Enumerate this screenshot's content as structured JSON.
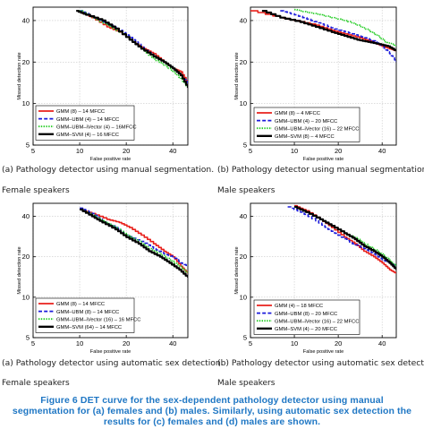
{
  "chart_data": [
    {
      "type": "line",
      "xlabel": "False positive rate",
      "ylabel": "Missed detection rate",
      "x_ticks": [
        "5",
        "10",
        "20",
        "40"
      ],
      "y_ticks": [
        "5",
        "10",
        "20",
        "40"
      ],
      "xlim": [
        5,
        50
      ],
      "ylim": [
        5,
        50
      ],
      "scale": "log",
      "grid": true,
      "legend_position": "bottom-left",
      "caption": "(a) Pathology detector using manual segmentation.",
      "group_label": "Female speakers",
      "series": [
        {
          "name": "GMM (8) – 14 MFCC",
          "color": "#e8201b",
          "style": "solid",
          "points": [
            [
              10,
              46
            ],
            [
              12,
              42
            ],
            [
              15,
              36
            ],
            [
              18,
              33
            ],
            [
              22,
              28
            ],
            [
              26,
              25
            ],
            [
              30,
              23
            ],
            [
              35,
              20
            ],
            [
              40,
              18
            ],
            [
              45,
              17
            ],
            [
              50,
              14
            ]
          ]
        },
        {
          "name": "GMM–UBM (4) – 14 MFCC",
          "color": "#1a1adb",
          "style": "dashed",
          "points": [
            [
              10,
              47
            ],
            [
              12,
              43
            ],
            [
              15,
              38
            ],
            [
              18,
              34
            ],
            [
              22,
              29
            ],
            [
              26,
              25
            ],
            [
              30,
              22
            ],
            [
              35,
              20
            ],
            [
              40,
              18
            ],
            [
              45,
              16
            ],
            [
              50,
              14
            ]
          ]
        },
        {
          "name": "GMM–UBM–iVector (4) – 16MFCC",
          "color": "#22cc22",
          "style": "dotted",
          "points": [
            [
              10,
              47
            ],
            [
              12,
              42
            ],
            [
              15,
              37
            ],
            [
              18,
              33
            ],
            [
              22,
              28
            ],
            [
              26,
              24
            ],
            [
              30,
              21
            ],
            [
              35,
              19
            ],
            [
              40,
              17
            ],
            [
              45,
              15
            ],
            [
              50,
              13
            ]
          ]
        },
        {
          "name": "GMM–SVM (4) – 16 MFCC",
          "color": "#000000",
          "style": "solid",
          "points": [
            [
              9.5,
              47
            ],
            [
              11,
              44
            ],
            [
              14,
              40
            ],
            [
              17,
              35
            ],
            [
              21,
              29
            ],
            [
              25,
              25
            ],
            [
              30,
              22
            ],
            [
              35,
              20
            ],
            [
              40,
              18
            ],
            [
              45,
              16
            ],
            [
              50,
              13
            ]
          ]
        }
      ]
    },
    {
      "type": "line",
      "xlabel": "False positive rate",
      "ylabel": "Missed detection rate",
      "x_ticks": [
        "5",
        "10",
        "20",
        "40"
      ],
      "y_ticks": [
        "5",
        "10",
        "20",
        "40"
      ],
      "xlim": [
        5,
        50
      ],
      "ylim": [
        5,
        50
      ],
      "scale": "log",
      "grid": true,
      "legend_position": "bottom-left",
      "caption": "(b) Pathology detector using manual segmentation.",
      "group_label": "Male speakers",
      "series": [
        {
          "name": "GMM (8) – 4 MFCC",
          "color": "#e8201b",
          "style": "solid",
          "points": [
            [
              5,
              47
            ],
            [
              8,
              42
            ],
            [
              10,
              40
            ],
            [
              14,
              37
            ],
            [
              18,
              34
            ],
            [
              22,
              32
            ],
            [
              28,
              30
            ],
            [
              34,
              28
            ],
            [
              40,
              26
            ],
            [
              45,
              25
            ],
            [
              50,
              24
            ]
          ]
        },
        {
          "name": "GMM–UBM (4) – 20 MFCC",
          "color": "#1a1adb",
          "style": "dashed",
          "points": [
            [
              8,
              47
            ],
            [
              10,
              44
            ],
            [
              13,
              40
            ],
            [
              16,
              37
            ],
            [
              20,
              34
            ],
            [
              25,
              32
            ],
            [
              30,
              30
            ],
            [
              36,
              28
            ],
            [
              40,
              26
            ],
            [
              45,
              23
            ],
            [
              50,
              20
            ]
          ]
        },
        {
          "name": "GMM–UBM–iVector (16) – 22 MFCC",
          "color": "#22cc22",
          "style": "dotted",
          "points": [
            [
              10,
              48
            ],
            [
              12,
              46
            ],
            [
              15,
              44
            ],
            [
              18,
              42
            ],
            [
              22,
              40
            ],
            [
              27,
              37
            ],
            [
              32,
              34
            ],
            [
              37,
              31
            ],
            [
              42,
              28
            ],
            [
              47,
              27
            ],
            [
              50,
              26
            ]
          ]
        },
        {
          "name": "GMM–SVM (8) – 4 MFCC",
          "color": "#000000",
          "style": "solid",
          "points": [
            [
              6,
              47
            ],
            [
              8,
              42
            ],
            [
              11,
              39
            ],
            [
              14,
              36
            ],
            [
              18,
              33
            ],
            [
              22,
              31
            ],
            [
              27,
              29
            ],
            [
              32,
              28
            ],
            [
              38,
              27
            ],
            [
              44,
              26
            ],
            [
              50,
              24
            ]
          ]
        }
      ]
    },
    {
      "type": "line",
      "xlabel": "False positive rate",
      "ylabel": "Missed detection rate",
      "x_ticks": [
        "5",
        "10",
        "20",
        "40"
      ],
      "y_ticks": [
        "5",
        "10",
        "20",
        "40"
      ],
      "xlim": [
        5,
        50
      ],
      "ylim": [
        5,
        50
      ],
      "scale": "log",
      "grid": true,
      "legend_position": "bottom-left",
      "caption": "(a) Pathology detector using automatic sex detection.",
      "group_label": "Female speakers",
      "series": [
        {
          "name": "GMM (8) – 14 MFCC",
          "color": "#e8201b",
          "style": "solid",
          "points": [
            [
              10,
              45
            ],
            [
              12,
              42
            ],
            [
              15,
              38
            ],
            [
              18,
              36
            ],
            [
              21,
              33
            ],
            [
              25,
              29
            ],
            [
              30,
              25
            ],
            [
              35,
              22
            ],
            [
              40,
              20
            ],
            [
              45,
              17
            ],
            [
              50,
              15
            ]
          ]
        },
        {
          "name": "GMM–UBM (8) – 14 MFCC",
          "color": "#1a1adb",
          "style": "dashed",
          "points": [
            [
              10,
              46
            ],
            [
              12,
              42
            ],
            [
              14,
              37
            ],
            [
              17,
              33
            ],
            [
              20,
              29
            ],
            [
              25,
              26
            ],
            [
              30,
              23
            ],
            [
              35,
              21
            ],
            [
              40,
              20
            ],
            [
              45,
              18
            ],
            [
              50,
              17
            ]
          ]
        },
        {
          "name": "GMM–UBM–iVector (16) – 16 MFCC",
          "color": "#22cc22",
          "style": "dotted",
          "points": [
            [
              10,
              45
            ],
            [
              12,
              41
            ],
            [
              14,
              37
            ],
            [
              17,
              33
            ],
            [
              20,
              29
            ],
            [
              24,
              26
            ],
            [
              28,
              23
            ],
            [
              33,
              21
            ],
            [
              38,
              19
            ],
            [
              44,
              17
            ],
            [
              50,
              15
            ]
          ]
        },
        {
          "name": "GMM–SVM (64) – 14 MFCC",
          "color": "#000000",
          "style": "solid",
          "points": [
            [
              10,
              45
            ],
            [
              12,
              40
            ],
            [
              14,
              36
            ],
            [
              17,
              32
            ],
            [
              20,
              28
            ],
            [
              24,
              25
            ],
            [
              28,
              22
            ],
            [
              33,
              20
            ],
            [
              38,
              18
            ],
            [
              44,
              16
            ],
            [
              50,
              14
            ]
          ]
        }
      ]
    },
    {
      "type": "line",
      "xlabel": "False positive rate",
      "ylabel": "Missed detection rate",
      "x_ticks": [
        "5",
        "10",
        "20",
        "40"
      ],
      "y_ticks": [
        "5",
        "10",
        "20",
        "40"
      ],
      "xlim": [
        5,
        50
      ],
      "ylim": [
        5,
        50
      ],
      "scale": "log",
      "grid": true,
      "legend_position": "bottom-left",
      "caption": "(b) Pathology detector using automatic sex detection.",
      "group_label": "Male speakers",
      "series": [
        {
          "name": "GMM (4) – 18 MFCC",
          "color": "#e8201b",
          "style": "solid",
          "points": [
            [
              10,
              48
            ],
            [
              12,
              44
            ],
            [
              15,
              38
            ],
            [
              18,
              33
            ],
            [
              22,
              28
            ],
            [
              26,
              25
            ],
            [
              30,
              22
            ],
            [
              35,
              20
            ],
            [
              40,
              18
            ],
            [
              45,
              16
            ],
            [
              50,
              15
            ]
          ]
        },
        {
          "name": "GMM–UBM (8) – 20 MFCC",
          "color": "#1a1adb",
          "style": "dashed",
          "points": [
            [
              9,
              47
            ],
            [
              11,
              43
            ],
            [
              14,
              37
            ],
            [
              17,
              32
            ],
            [
              21,
              28
            ],
            [
              25,
              25
            ],
            [
              30,
              23
            ],
            [
              35,
              21
            ],
            [
              40,
              19
            ],
            [
              45,
              18
            ],
            [
              50,
              17
            ]
          ]
        },
        {
          "name": "GMM–UBM–iVector (16) – 22 MFCC",
          "color": "#22cc22",
          "style": "dotted",
          "points": [
            [
              10,
              47
            ],
            [
              12,
              43
            ],
            [
              15,
              38
            ],
            [
              18,
              34
            ],
            [
              22,
              30
            ],
            [
              27,
              27
            ],
            [
              32,
              24
            ],
            [
              37,
              22
            ],
            [
              42,
              20
            ],
            [
              47,
              18
            ],
            [
              50,
              17
            ]
          ]
        },
        {
          "name": "GMM–SVM (4) – 20 MFCC",
          "color": "#000000",
          "style": "solid",
          "points": [
            [
              10,
              47
            ],
            [
              12,
              43
            ],
            [
              15,
              38
            ],
            [
              18,
              34
            ],
            [
              22,
              30
            ],
            [
              26,
              27
            ],
            [
              30,
              24
            ],
            [
              35,
              22
            ],
            [
              40,
              20
            ],
            [
              45,
              18
            ],
            [
              50,
              16
            ]
          ]
        }
      ]
    }
  ],
  "figure_caption": "Figure 6 DET curve for the sex-dependent pathology detector using manual segmentation for (a) females and (b) males. Similarly, using automatic sex detection the results for (c) females and (d) males are shown."
}
